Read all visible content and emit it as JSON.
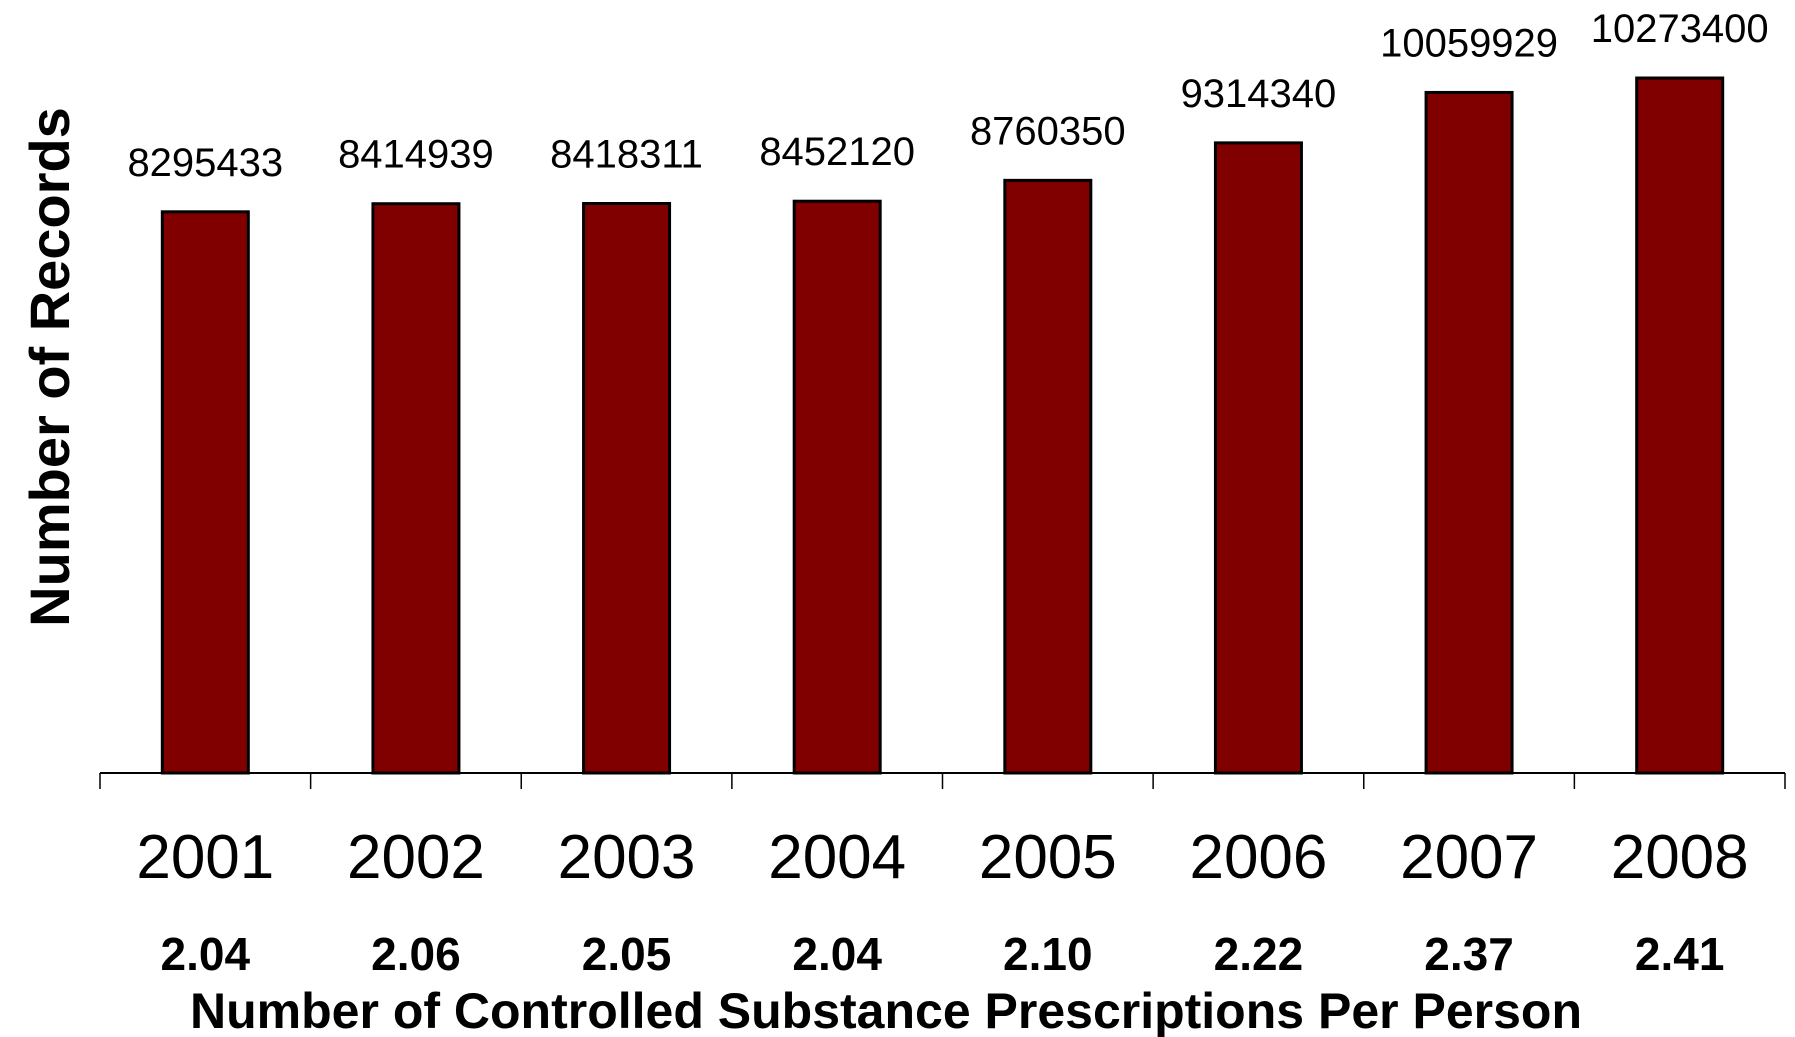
{
  "chart_data": {
    "type": "bar",
    "categories": [
      "2001",
      "2002",
      "2003",
      "2004",
      "2005",
      "2006",
      "2007",
      "2008"
    ],
    "values": [
      8295433,
      8414939,
      8418311,
      8452120,
      8760350,
      9314340,
      10059929,
      10273400
    ],
    "value_labels": [
      "8295433",
      "8414939",
      "8418311",
      "8452120",
      "8760350",
      "9314340",
      "10059929",
      "10273400"
    ],
    "secondary_labels": [
      "2.04",
      "2.06",
      "2.05",
      "2.04",
      "2.10",
      "2.22",
      "2.37",
      "2.41"
    ],
    "xlabel": "Number of Controlled Substance Prescriptions Per Person",
    "ylabel": "Number of Records",
    "ylim": [
      0,
      11000000
    ],
    "grid": false,
    "legend": "none",
    "bar_color": "#800000"
  }
}
